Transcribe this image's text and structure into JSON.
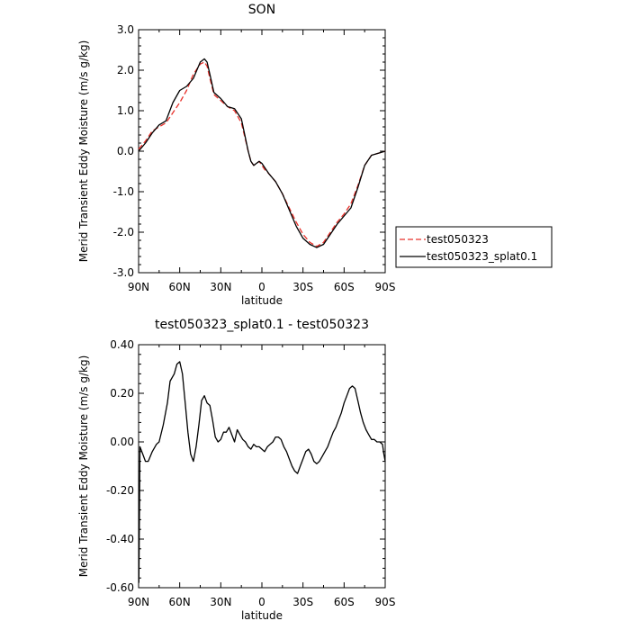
{
  "chart_data": [
    {
      "type": "line",
      "title": "SON",
      "xlabel": "latitude",
      "ylabel": "Merid Transient Eddy Moisture (m/s g/kg)",
      "xlim": [
        90,
        -90
      ],
      "ylim": [
        -3.0,
        3.0
      ],
      "x_ticks": [
        90,
        60,
        30,
        0,
        -30,
        -60,
        -90
      ],
      "x_tick_labels": [
        "90N",
        "60N",
        "30N",
        "0",
        "30S",
        "60S",
        "90S"
      ],
      "y_ticks": [
        3,
        2,
        1,
        0,
        -1,
        -2,
        -3
      ],
      "y_tick_labels": [
        "3.0",
        "2.0",
        "1.0",
        "0.0",
        "-1.0",
        "-2.0",
        "-3.0"
      ],
      "grid": false,
      "legend_position": "right",
      "series": [
        {
          "name": "test050323",
          "color": "#e8302a",
          "dash": "dashed",
          "x": [
            90,
            85,
            80,
            75,
            70,
            65,
            60,
            55,
            50,
            45,
            42,
            40,
            38,
            35,
            30,
            25,
            20,
            15,
            10,
            8,
            6,
            4,
            2,
            0,
            -2,
            -5,
            -10,
            -15,
            -20,
            -25,
            -30,
            -35,
            -40,
            -45,
            -50,
            -55,
            -60,
            -65,
            -70,
            -75,
            -80,
            -85,
            -90
          ],
          "y": [
            0.05,
            0.25,
            0.5,
            0.6,
            0.7,
            0.95,
            1.2,
            1.5,
            1.9,
            2.15,
            2.2,
            2.1,
            1.8,
            1.4,
            1.25,
            1.1,
            1.0,
            0.7,
            0.0,
            -0.25,
            -0.35,
            -0.3,
            -0.25,
            -0.35,
            -0.45,
            -0.55,
            -0.75,
            -1.05,
            -1.4,
            -1.75,
            -2.05,
            -2.25,
            -2.35,
            -2.25,
            -2.0,
            -1.75,
            -1.55,
            -1.3,
            -0.85,
            -0.35,
            -0.1,
            -0.05,
            0.0
          ]
        },
        {
          "name": "test050323_splat0.1",
          "color": "#000000",
          "dash": "solid",
          "x": [
            90,
            85,
            80,
            75,
            70,
            65,
            60,
            55,
            50,
            45,
            42,
            40,
            38,
            35,
            30,
            25,
            20,
            15,
            10,
            8,
            6,
            4,
            2,
            0,
            -2,
            -5,
            -10,
            -15,
            -20,
            -25,
            -30,
            -35,
            -40,
            -45,
            -50,
            -55,
            -60,
            -65,
            -70,
            -75,
            -80,
            -85,
            -90
          ],
          "y": [
            0.0,
            0.2,
            0.45,
            0.65,
            0.75,
            1.2,
            1.5,
            1.6,
            1.8,
            2.2,
            2.28,
            2.2,
            1.9,
            1.45,
            1.3,
            1.1,
            1.05,
            0.8,
            0.0,
            -0.25,
            -0.35,
            -0.3,
            -0.25,
            -0.3,
            -0.4,
            -0.55,
            -0.75,
            -1.05,
            -1.45,
            -1.85,
            -2.15,
            -2.3,
            -2.38,
            -2.3,
            -2.05,
            -1.8,
            -1.6,
            -1.4,
            -0.9,
            -0.35,
            -0.1,
            -0.05,
            0.0
          ]
        }
      ]
    },
    {
      "type": "line",
      "title": "test050323_splat0.1 - test050323",
      "xlabel": "latitude",
      "ylabel": "Merid Transient Eddy Moisture (m/s g/kg)",
      "xlim": [
        90,
        -90
      ],
      "ylim": [
        -0.6,
        0.4
      ],
      "x_ticks": [
        90,
        60,
        30,
        0,
        -30,
        -60,
        -90
      ],
      "x_tick_labels": [
        "90N",
        "60N",
        "30N",
        "0",
        "30S",
        "60S",
        "90S"
      ],
      "y_ticks": [
        0.4,
        0.2,
        0.0,
        -0.2,
        -0.4,
        -0.6
      ],
      "y_tick_labels": [
        "0.40",
        "0.20",
        "0.00",
        "-0.20",
        "-0.40",
        "-0.60"
      ],
      "grid": false,
      "series": [
        {
          "color": "#000000",
          "dash": "solid",
          "x": [
            89.8,
            89,
            87,
            85,
            83,
            80,
            77,
            75,
            72,
            69,
            67,
            64,
            62,
            60,
            58,
            56,
            54,
            52,
            50,
            48,
            46,
            44,
            42,
            40,
            38,
            36,
            34,
            32,
            30,
            28,
            26,
            24,
            22,
            20,
            18,
            16,
            14,
            12,
            10,
            8,
            6,
            4,
            2,
            0,
            -2,
            -4,
            -6,
            -8,
            -10,
            -12,
            -14,
            -16,
            -18,
            -20,
            -22,
            -24,
            -26,
            -28,
            -30,
            -32,
            -34,
            -36,
            -38,
            -40,
            -42,
            -44,
            -46,
            -48,
            -50,
            -52,
            -54,
            -56,
            -58,
            -60,
            -62,
            -64,
            -66,
            -68,
            -70,
            -72,
            -74,
            -76,
            -78,
            -80,
            -82,
            -84,
            -86,
            -88,
            -89,
            -90
          ],
          "y": [
            -0.58,
            -0.02,
            -0.05,
            -0.08,
            -0.08,
            -0.04,
            -0.01,
            0.0,
            0.07,
            0.16,
            0.25,
            0.28,
            0.32,
            0.33,
            0.28,
            0.16,
            0.04,
            -0.05,
            -0.08,
            -0.02,
            0.07,
            0.17,
            0.19,
            0.16,
            0.15,
            0.09,
            0.02,
            0.0,
            0.01,
            0.04,
            0.04,
            0.06,
            0.03,
            0.0,
            0.05,
            0.03,
            0.01,
            0.0,
            -0.02,
            -0.03,
            -0.01,
            -0.02,
            -0.02,
            -0.03,
            -0.04,
            -0.02,
            -0.01,
            0.0,
            0.02,
            0.02,
            0.01,
            -0.02,
            -0.04,
            -0.07,
            -0.1,
            -0.12,
            -0.13,
            -0.1,
            -0.07,
            -0.04,
            -0.03,
            -0.05,
            -0.08,
            -0.09,
            -0.08,
            -0.06,
            -0.04,
            -0.02,
            0.01,
            0.04,
            0.06,
            0.09,
            0.12,
            0.16,
            0.19,
            0.22,
            0.23,
            0.22,
            0.17,
            0.12,
            0.08,
            0.05,
            0.03,
            0.01,
            0.01,
            0.0,
            0.0,
            -0.01,
            -0.05,
            -0.08
          ]
        }
      ]
    }
  ]
}
